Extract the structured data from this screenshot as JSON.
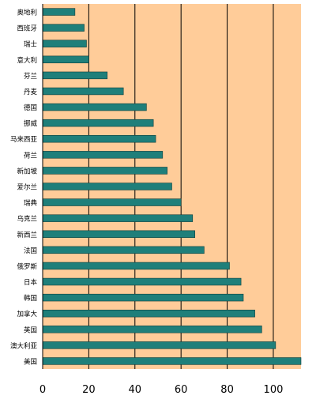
{
  "chart_data": {
    "type": "bar",
    "orientation": "horizontal",
    "categories": [
      "奥地利",
      "西班牙",
      "瑞士",
      "意大利",
      "芬兰",
      "丹麦",
      "德国",
      "挪威",
      "马来西亚",
      "荷兰",
      "新加坡",
      "爱尔兰",
      "瑞典",
      "乌克兰",
      "新西兰",
      "法国",
      "俄罗斯",
      "日本",
      "韩国",
      "加拿大",
      "英国",
      "澳大利亚",
      "美国"
    ],
    "values": [
      14,
      18,
      19,
      20,
      28,
      35,
      45,
      48,
      49,
      52,
      54,
      56,
      60,
      65,
      66,
      70,
      81,
      86,
      87,
      92,
      95,
      101,
      112
    ],
    "title": "",
    "xlabel": "",
    "ylabel": "",
    "xlim": [
      0,
      112
    ],
    "xticks": [
      "0",
      "20",
      "40",
      "60",
      "80",
      "100"
    ],
    "grid": "vertical",
    "legend": "none",
    "colors": {
      "plot_background": "#FFCC99",
      "bar": "#1F7F7A",
      "bar_edge": "#0E3F3D",
      "axis": "#000000",
      "gridline": "#000000"
    }
  }
}
